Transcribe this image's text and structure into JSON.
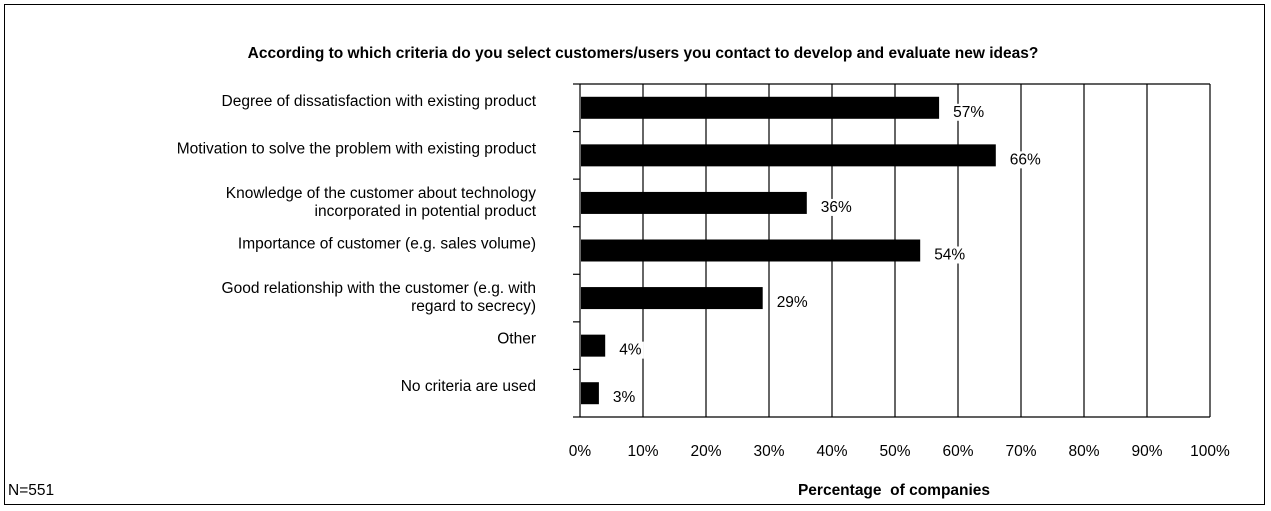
{
  "chart_data": {
    "type": "bar",
    "orientation": "horizontal",
    "title": "According to which criteria do you select customers/users you contact to develop and evaluate new ideas?",
    "xlabel": "Percentage  of companies",
    "ylabel": "",
    "categories": [
      [
        "Degree of dissatisfaction with existing product"
      ],
      [
        "Motivation to solve the problem with existing product"
      ],
      [
        "Knowledge of the customer about technology",
        "incorporated in potential product"
      ],
      [
        "Importance of customer (e.g. sales volume)"
      ],
      [
        "Good relationship with the customer (e.g. with",
        "regard to secrecy)"
      ],
      [
        "Other"
      ],
      [
        "No criteria are used"
      ]
    ],
    "values": [
      57,
      66,
      36,
      54,
      29,
      4,
      3
    ],
    "value_labels": [
      "57%",
      "66%",
      "36%",
      "54%",
      "29%",
      "4%",
      "3%"
    ],
    "xlim": [
      0,
      100
    ],
    "xticks": [
      "0%",
      "10%",
      "20%",
      "30%",
      "40%",
      "50%",
      "60%",
      "70%",
      "80%",
      "90%",
      "100%"
    ],
    "grid": "vertical",
    "bar_color": "#000000",
    "note": "N=551"
  }
}
